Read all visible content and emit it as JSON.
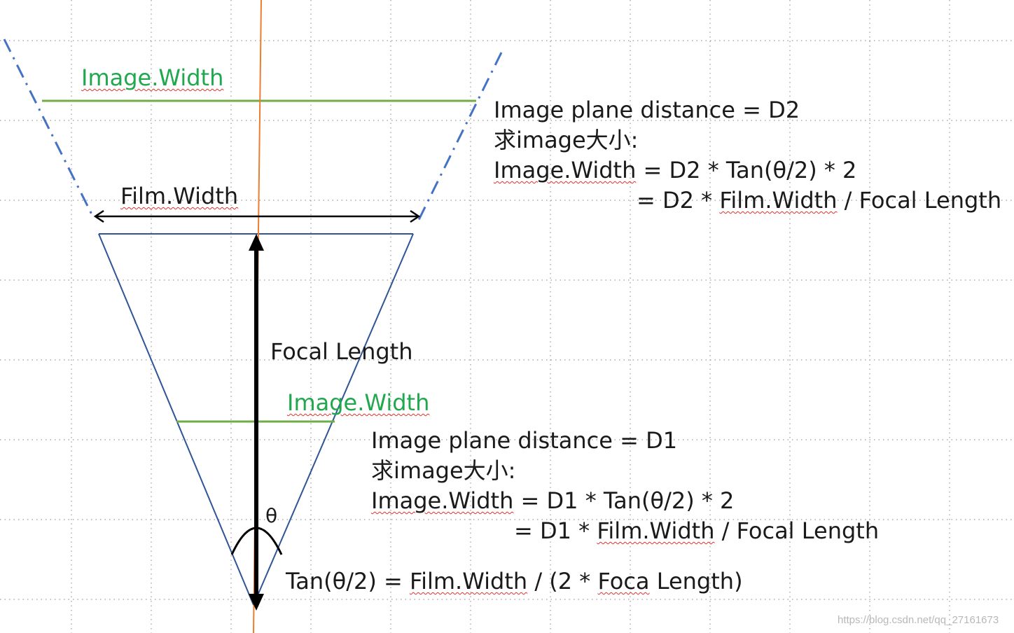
{
  "colors": {
    "blue_lines": "#2f5597",
    "fov_dashes": "#4472c4",
    "green_lines": "#70ad47",
    "green_text": "#21a84f",
    "axis_orange": "#ed7d31",
    "arrows": "#000000",
    "grid_dots": "#9a9a9a",
    "misspelling_underline": "#e0302a"
  },
  "labels": {
    "image_width_top": "Image.Width",
    "film_width": "Film.Width",
    "focal_length": "Focal Length",
    "image_width_mid": "Image.Width",
    "theta": "θ"
  },
  "d2_block": {
    "line1": "Image plane distance = D2",
    "line2": "求image大小:",
    "line3_term": "Image.Width",
    "line3_rest": " = D2 * Tan(θ/2) * 2",
    "line4_prefix": "= D2 * ",
    "line4_term": "Film.Width",
    "line4_suffix": " / Focal Length"
  },
  "d1_block": {
    "line1": "Image plane distance = D1",
    "line2": "求image大小:",
    "line3_term": "Image.Width",
    "line3_rest": " = D1 * Tan(θ/2) * 2",
    "line4_prefix": "= D1 * ",
    "line4_term": "Film.Width",
    "line4_suffix": " / Focal Length"
  },
  "tan_formula": {
    "prefix": "Tan(θ/2) = ",
    "term1": "Film.Width",
    "middle": " / (2 * ",
    "term2": "Foca",
    "suffix": " Length)"
  },
  "watermark": "https://blog.csdn.net/qq_27161673"
}
